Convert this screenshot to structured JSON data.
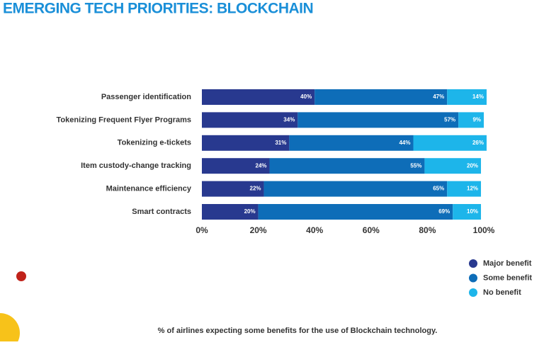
{
  "chart_data": {
    "type": "bar",
    "orientation": "horizontal",
    "stacked": true,
    "title": "EMERGING TECH PRIORITIES: BLOCKCHAIN",
    "caption": "% of airlines expecting some benefits for the use of Blockchain technology.",
    "categories": [
      "Passenger identification",
      "Tokenizing Frequent Flyer Programs",
      "Tokenizing e-tickets",
      "Item custody-change tracking",
      "Maintenance efficiency",
      "Smart contracts"
    ],
    "series": [
      {
        "name": "Major benefit",
        "color": "#28398f",
        "values": [
          40,
          34,
          31,
          24,
          22,
          20
        ],
        "value_labels": [
          "40%",
          "34%",
          "31%",
          "24%",
          "22%",
          "20%"
        ]
      },
      {
        "name": "Some benefit",
        "color": "#0e6db8",
        "values": [
          47,
          57,
          44,
          55,
          65,
          69
        ],
        "value_labels": [
          "47%",
          "57%",
          "44%",
          "55%",
          "65%",
          "69%"
        ]
      },
      {
        "name": "No benefit",
        "color": "#1db5ea",
        "values": [
          14,
          9,
          26,
          20,
          12,
          10
        ],
        "value_labels": [
          "14%",
          "9%",
          "26%",
          "20%",
          "12%",
          "10%"
        ]
      }
    ],
    "xlim": [
      0,
      100
    ],
    "xticks": [
      {
        "value": 0,
        "label": "0%"
      },
      {
        "value": 20,
        "label": "20%"
      },
      {
        "value": 40,
        "label": "40%"
      },
      {
        "value": 60,
        "label": "60%"
      },
      {
        "value": 80,
        "label": "80%"
      },
      {
        "value": 100,
        "label": "100%"
      }
    ],
    "legend": "bottom-right"
  }
}
